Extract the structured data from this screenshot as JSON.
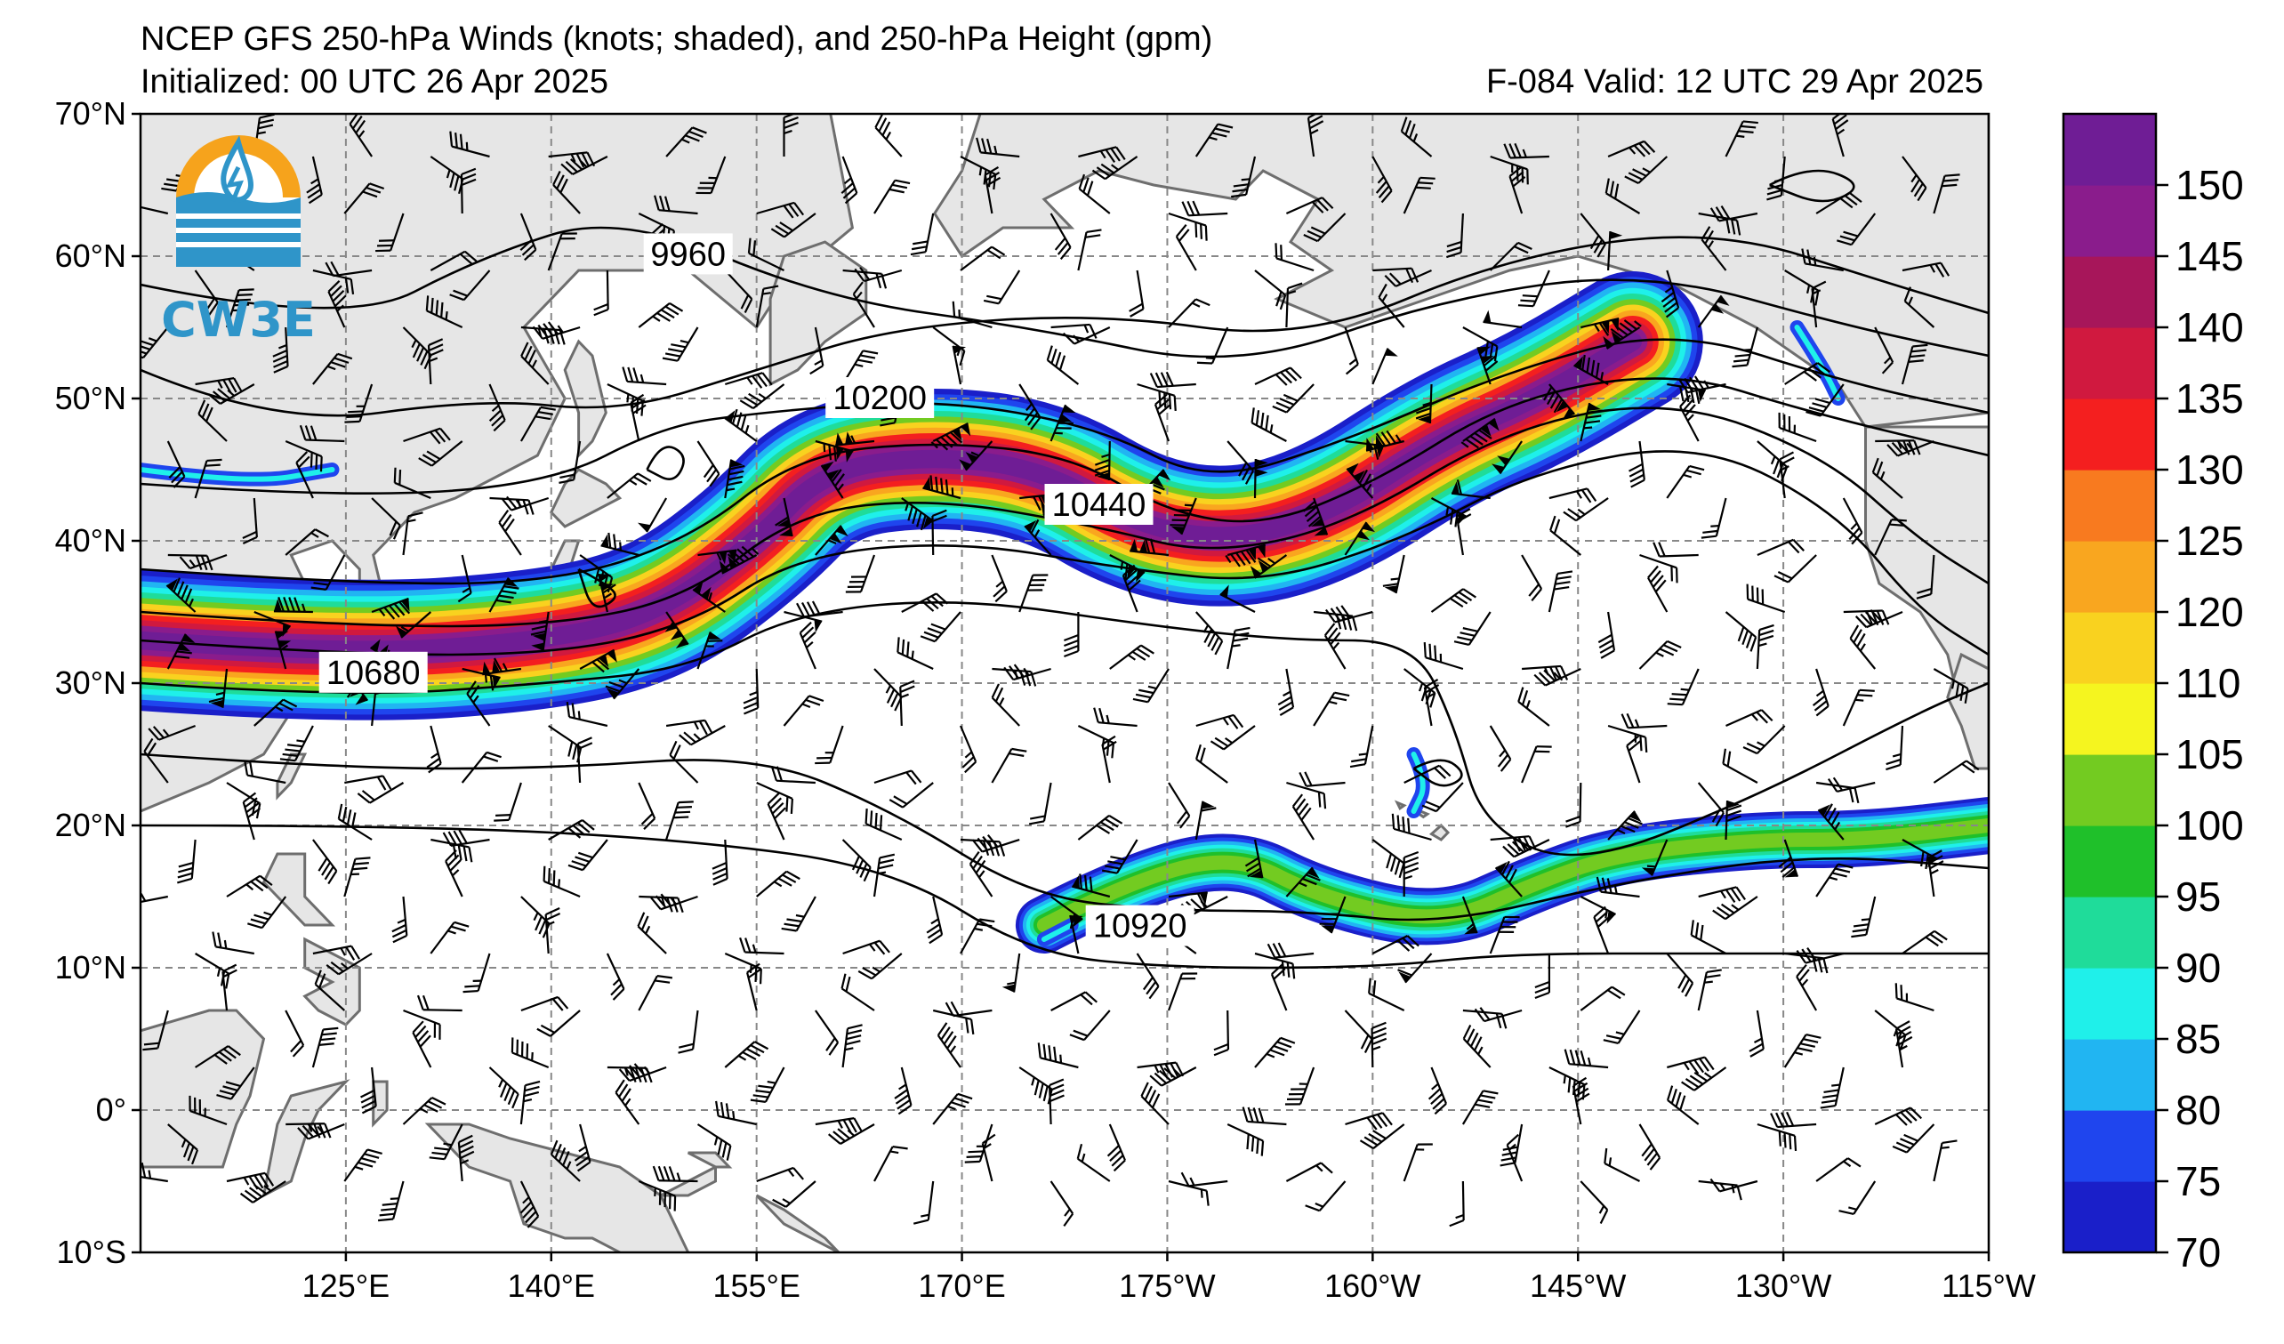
{
  "header": {
    "title": "NCEP GFS 250-hPa Winds (knots; shaded), and 250-hPa Height (gpm)",
    "init": "Initialized: 00 UTC 26 Apr 2025",
    "valid": "F-084  Valid: 12 UTC 29 Apr 2025"
  },
  "logo": {
    "text": "CW3E"
  },
  "map": {
    "lon_range": [
      110,
      245
    ],
    "lat_range": [
      -10,
      70
    ],
    "lat_ticks": [
      {
        "lat": 70,
        "label": "70°N"
      },
      {
        "lat": 60,
        "label": "60°N"
      },
      {
        "lat": 50,
        "label": "50°N"
      },
      {
        "lat": 40,
        "label": "40°N"
      },
      {
        "lat": 30,
        "label": "30°N"
      },
      {
        "lat": 20,
        "label": "20°N"
      },
      {
        "lat": 10,
        "label": "10°N"
      },
      {
        "lat": 0,
        "label": "0°"
      },
      {
        "lat": -10,
        "label": "10°S"
      }
    ],
    "lon_ticks": [
      {
        "lon": 125,
        "label": "125°E"
      },
      {
        "lon": 140,
        "label": "140°E"
      },
      {
        "lon": 155,
        "label": "155°E"
      },
      {
        "lon": 170,
        "label": "170°E"
      },
      {
        "lon": 185,
        "label": "175°W"
      },
      {
        "lon": 200,
        "label": "160°W"
      },
      {
        "lon": 215,
        "label": "145°W"
      },
      {
        "lon": 230,
        "label": "130°W"
      },
      {
        "lon": 245,
        "label": "115°W"
      }
    ],
    "land_color": "#e6e6e6",
    "coast_color": "#6e6e6e",
    "contour_labels": [
      {
        "label": "9960",
        "lon": 150,
        "lat": 60.1
      },
      {
        "label": "10200",
        "lon": 164,
        "lat": 50.0
      },
      {
        "lon": 180,
        "lat": 42.5,
        "label": "10440"
      },
      {
        "label": "10680",
        "lon": 127,
        "lat": 30.7
      },
      {
        "label": "10920",
        "lon": 183,
        "lat": 12.9
      }
    ]
  },
  "colorbar": {
    "levels": [
      70,
      75,
      80,
      85,
      90,
      95,
      100,
      105,
      110,
      120,
      125,
      130,
      135,
      140,
      145,
      150,
      155
    ],
    "colors": [
      "#1a1fc9",
      "#1f45ee",
      "#21b5f2",
      "#1ff0ea",
      "#1fdc9a",
      "#1fc02a",
      "#73cb21",
      "#f5f51f",
      "#f9d21f",
      "#f9a61f",
      "#f87a1f",
      "#f41f1f",
      "#d0193f",
      "#a7165a",
      "#8a1c8c",
      "#6f1d95"
    ],
    "labels": [
      "70",
      "75",
      "80",
      "85",
      "90",
      "95",
      "100",
      "105",
      "110",
      "120",
      "125",
      "130",
      "135",
      "140",
      "145",
      "150"
    ]
  },
  "chart_data": {
    "type": "heatmap",
    "title": "NCEP GFS 250-hPa Winds (knots; shaded), and 250-hPa Height (gpm)",
    "jet_streams": [
      {
        "axis_lon_lat": [
          [
            110,
            33
          ],
          [
            125,
            32
          ],
          [
            140,
            33
          ],
          [
            148,
            35
          ],
          [
            155,
            40
          ],
          [
            160,
            45
          ],
          [
            168,
            46
          ],
          [
            176,
            45
          ],
          [
            183,
            41
          ],
          [
            190,
            40
          ],
          [
            197,
            42
          ],
          [
            205,
            47
          ],
          [
            212,
            50
          ],
          [
            219,
            54
          ]
        ],
        "core_knots": 150
      },
      {
        "axis_lon_lat": [
          [
            176,
            13
          ],
          [
            182,
            16
          ],
          [
            190,
            18
          ],
          [
            196,
            15
          ],
          [
            205,
            13
          ],
          [
            212,
            16
          ],
          [
            218,
            18
          ],
          [
            228,
            19
          ],
          [
            236,
            19
          ],
          [
            245,
            20
          ]
        ],
        "core_knots": 95
      }
    ],
    "height_contours_gpm": [
      9960,
      10200,
      10440,
      10680,
      10920
    ]
  }
}
